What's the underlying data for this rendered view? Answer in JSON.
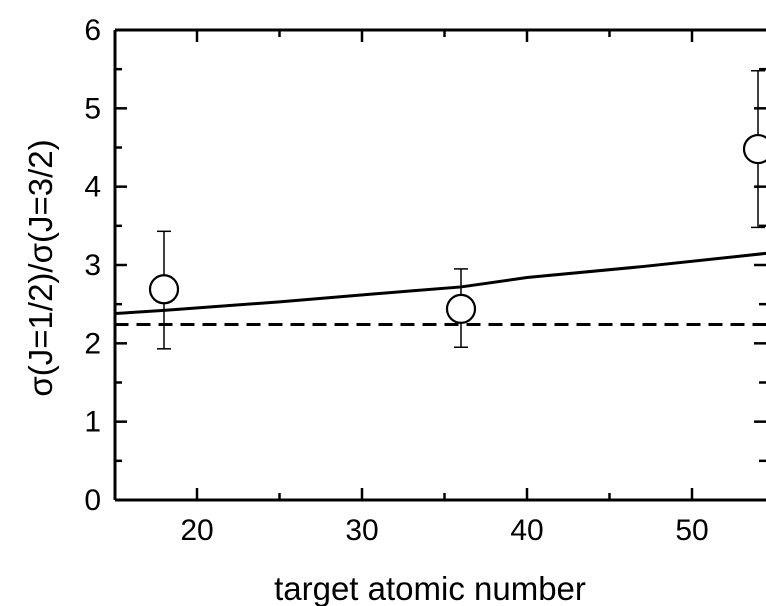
{
  "chart_data": {
    "type": "scatter",
    "title": "",
    "xlabel": "target atomic number",
    "ylabel": "σ(J=1/2)/σ(J=3/2)",
    "xlim": [
      15,
      55
    ],
    "ylim": [
      0,
      6
    ],
    "x_ticks": [
      20,
      30,
      40,
      50
    ],
    "y_ticks": [
      0,
      1,
      2,
      3,
      4,
      5,
      6
    ],
    "grid": false,
    "legend": "none",
    "series": [
      {
        "kind": "points-with-errorbars",
        "marker": "open-circle",
        "x": [
          18,
          36,
          54
        ],
        "y": [
          2.69,
          2.44,
          4.48
        ],
        "err_low": [
          0.76,
          0.49,
          1.0
        ],
        "err_high": [
          0.74,
          0.51,
          1.0
        ]
      },
      {
        "kind": "solid-line",
        "x": [
          15,
          18,
          25,
          33,
          36,
          40,
          47,
          55
        ],
        "y": [
          2.38,
          2.42,
          2.53,
          2.67,
          2.72,
          2.84,
          2.98,
          3.16
        ]
      },
      {
        "kind": "dashed-line",
        "x": [
          15,
          55
        ],
        "y": [
          2.24,
          2.24
        ]
      }
    ]
  }
}
